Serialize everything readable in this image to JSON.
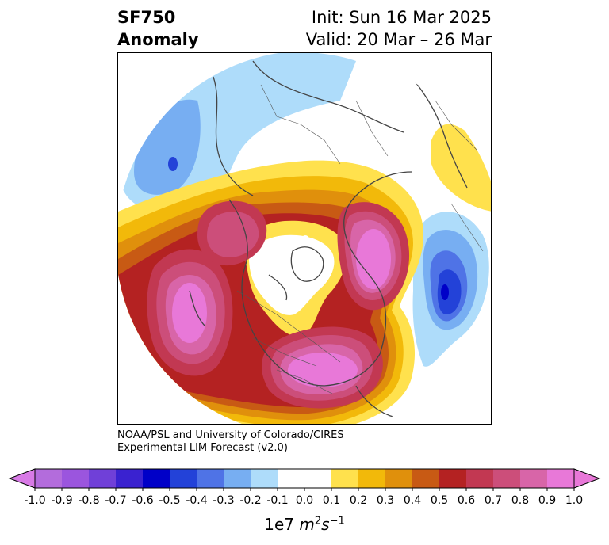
{
  "title": {
    "line1_left": "SF750",
    "line2_left": "Anomaly",
    "line1_right": "Init: Sun 16 Mar 2025",
    "line2_right": "Valid: 20 Mar – 26 Mar"
  },
  "credit": {
    "line1": "NOAA/PSL and University of Colorado/CIRES",
    "line2": "Experimental LIM Forecast (v2.0)"
  },
  "colorbar": {
    "ticks": [
      "-1.0",
      "-0.9",
      "-0.8",
      "-0.7",
      "-0.6",
      "-0.5",
      "-0.4",
      "-0.3",
      "-0.2",
      "-0.1",
      "0.0",
      "0.1",
      "0.2",
      "0.3",
      "0.4",
      "0.5",
      "0.6",
      "0.7",
      "0.8",
      "0.9",
      "1.0"
    ],
    "colors": [
      "#b36cdc",
      "#9b55de",
      "#7040d8",
      "#3a22d0",
      "#0000c8",
      "#2342d8",
      "#4f73e6",
      "#77aef2",
      "#aedcfa",
      "#ffffff",
      "#ffffff",
      "#ffe14d",
      "#f2b90a",
      "#e0900c",
      "#c85a14",
      "#b42222",
      "#c23852",
      "#cc4e7a",
      "#d865a8",
      "#e878d8"
    ],
    "extend_low_color": "#d87ae6",
    "extend_high_color": "#e878d8",
    "unit_prefix": "1e7 ",
    "unit_m": "m",
    "unit_m_exp": "2",
    "unit_s": "s",
    "unit_s_exp": "−1"
  }
}
